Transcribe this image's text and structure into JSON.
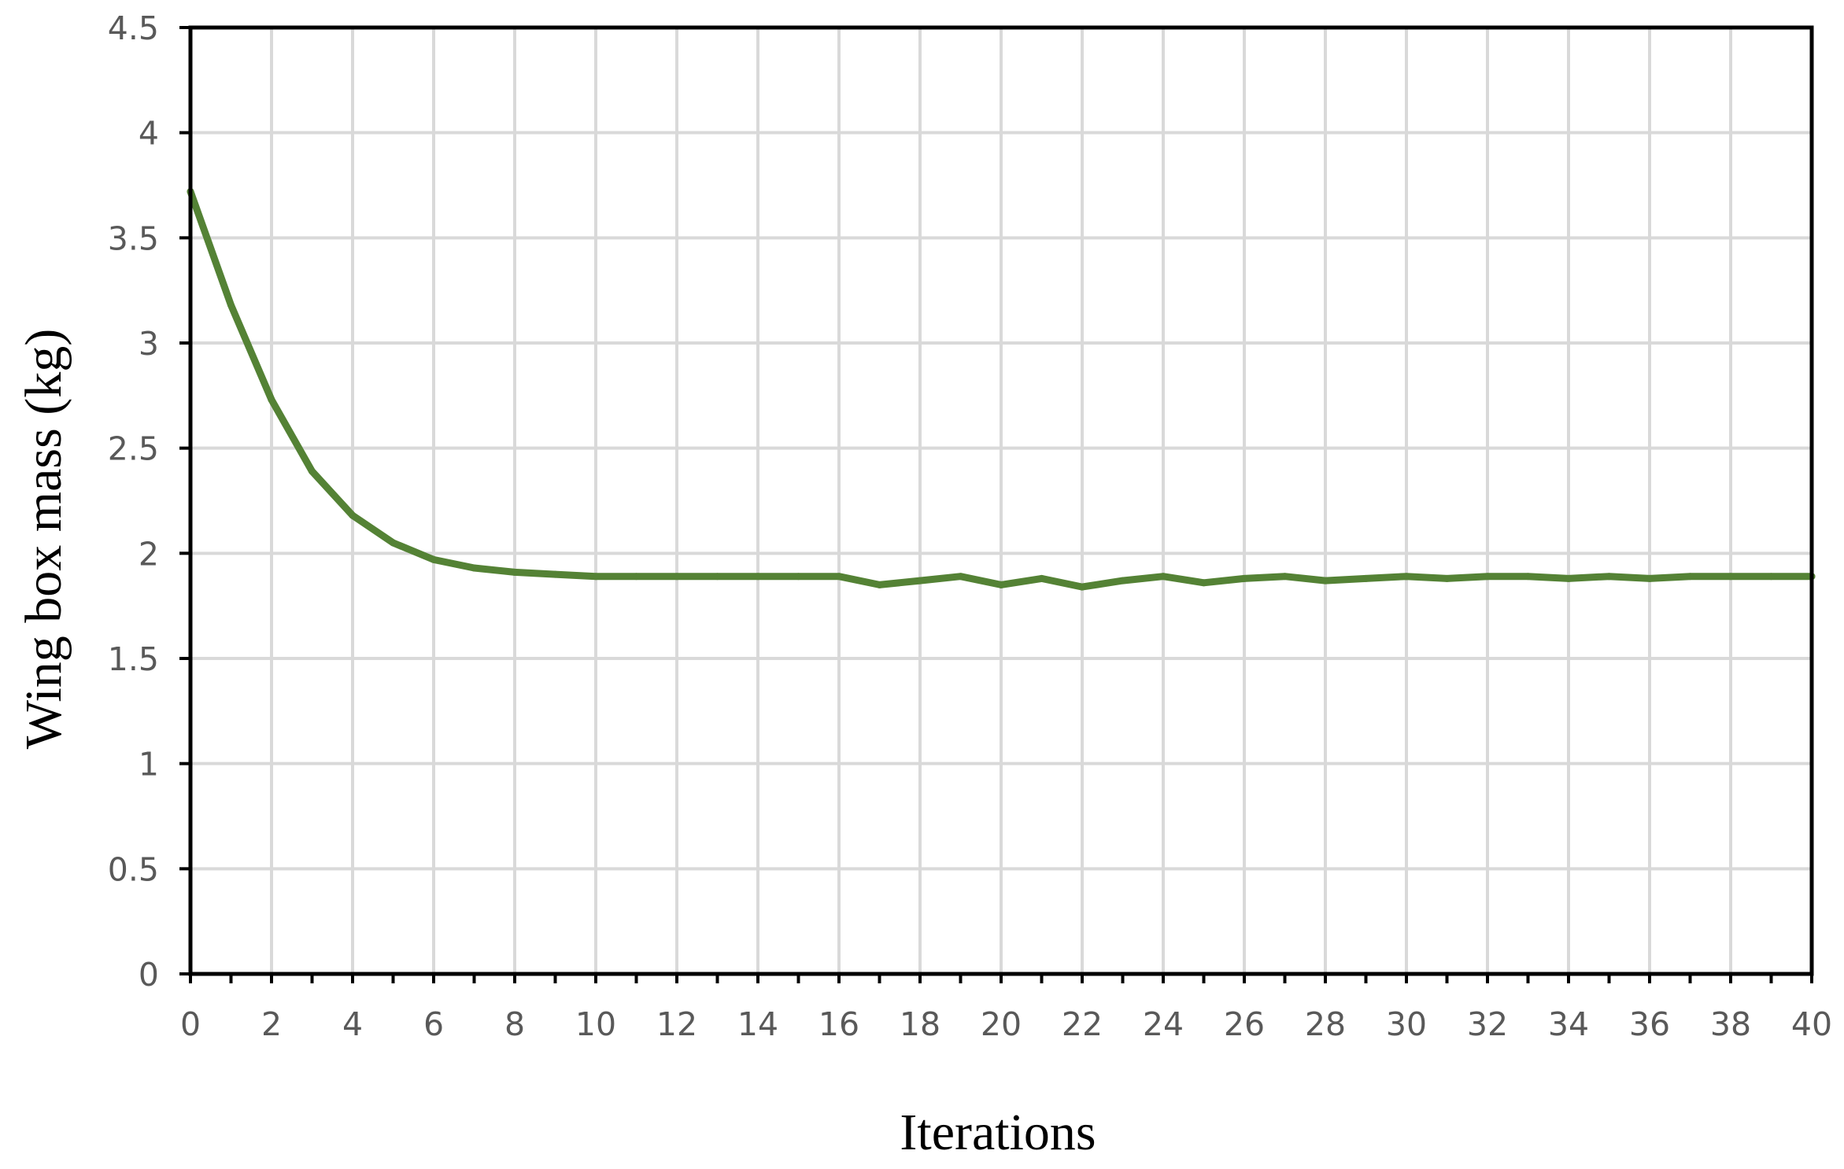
{
  "chart_data": {
    "type": "line",
    "title": "",
    "xlabel": "Iterations",
    "ylabel": "Wing  box mass (kg)",
    "xlim": [
      0,
      40
    ],
    "ylim": [
      0,
      4.5
    ],
    "xticks": [
      0,
      2,
      4,
      6,
      8,
      10,
      12,
      14,
      16,
      18,
      20,
      22,
      24,
      26,
      28,
      30,
      32,
      34,
      36,
      38,
      40
    ],
    "yticks": [
      0,
      0.5,
      1,
      1.5,
      2,
      2.5,
      3,
      3.5,
      4,
      4.5
    ],
    "ytick_labels": [
      "0",
      "0.5",
      "1",
      "1.5",
      "2",
      "2.5",
      "3",
      "3.5",
      "4",
      "4.5"
    ],
    "grid": true,
    "legend": "none",
    "series": [
      {
        "color": "#548235",
        "x": [
          0,
          1,
          2,
          3,
          4,
          5,
          6,
          7,
          8,
          9,
          10,
          11,
          12,
          13,
          14,
          15,
          16,
          17,
          18,
          19,
          20,
          21,
          22,
          23,
          24,
          25,
          26,
          27,
          28,
          29,
          30,
          31,
          32,
          33,
          34,
          35,
          36,
          37,
          38,
          39,
          40
        ],
        "y": [
          3.72,
          3.18,
          2.73,
          2.39,
          2.18,
          2.05,
          1.97,
          1.93,
          1.91,
          1.9,
          1.89,
          1.89,
          1.89,
          1.89,
          1.89,
          1.89,
          1.89,
          1.85,
          1.87,
          1.89,
          1.85,
          1.88,
          1.84,
          1.87,
          1.89,
          1.86,
          1.88,
          1.89,
          1.87,
          1.88,
          1.89,
          1.88,
          1.89,
          1.89,
          1.88,
          1.89,
          1.88,
          1.89,
          1.89,
          1.89,
          1.89
        ]
      }
    ]
  },
  "colors": {
    "series": "#548235",
    "grid": "#d9d9d9",
    "axes": "#000000",
    "tick_text": "#595959"
  }
}
